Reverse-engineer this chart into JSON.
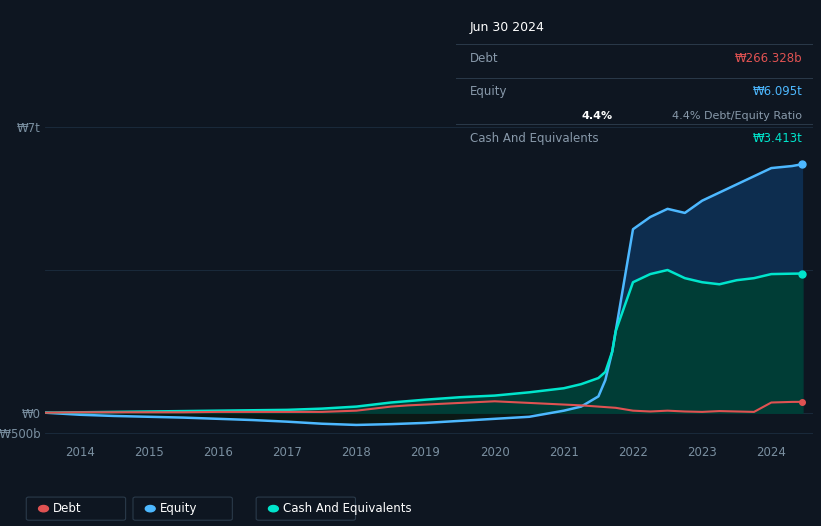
{
  "background_color": "#0e1621",
  "plot_bg_color": "#0e1621",
  "grid_color": "#1c2d3f",
  "title_box": {
    "date": "Jun 30 2024",
    "debt_label": "Debt",
    "debt_value": "₩266.328b",
    "equity_label": "Equity",
    "equity_value": "₩6.095t",
    "ratio_text": "4.4%",
    "ratio_suffix": " Debt/Equity Ratio",
    "cash_label": "Cash And Equivalents",
    "cash_value": "₩3.413t",
    "debt_color": "#e05252",
    "equity_color": "#4db8ff",
    "cash_color": "#00e5cc",
    "box_bg": "#0a0f1a",
    "box_border": "#2a3a4a"
  },
  "equity_data": {
    "x": [
      2013.5,
      2014.0,
      2014.5,
      2015.0,
      2015.5,
      2016.0,
      2016.5,
      2017.0,
      2017.5,
      2018.0,
      2018.5,
      2019.0,
      2019.5,
      2020.0,
      2020.5,
      2021.0,
      2021.25,
      2021.5,
      2021.6,
      2021.7,
      2021.75,
      2022.0,
      2022.25,
      2022.5,
      2022.75,
      2023.0,
      2023.25,
      2023.5,
      2023.75,
      2024.0,
      2024.3,
      2024.45
    ],
    "y": [
      0.0,
      -0.05,
      -0.08,
      -0.1,
      -0.12,
      -0.15,
      -0.18,
      -0.22,
      -0.27,
      -0.3,
      -0.28,
      -0.25,
      -0.2,
      -0.15,
      -0.1,
      0.05,
      0.15,
      0.4,
      0.8,
      1.5,
      2.0,
      4.5,
      4.8,
      5.0,
      4.9,
      5.2,
      5.4,
      5.6,
      5.8,
      6.0,
      6.05,
      6.095
    ],
    "color": "#4db8ff",
    "fill_color": "#0d2d4f",
    "linewidth": 1.8
  },
  "cash_data": {
    "x": [
      2013.5,
      2014.0,
      2014.5,
      2015.0,
      2015.5,
      2016.0,
      2016.5,
      2017.0,
      2017.5,
      2018.0,
      2018.25,
      2018.5,
      2019.0,
      2019.5,
      2020.0,
      2020.5,
      2021.0,
      2021.25,
      2021.5,
      2021.6,
      2021.7,
      2021.75,
      2022.0,
      2022.25,
      2022.5,
      2022.75,
      2023.0,
      2023.25,
      2023.5,
      2023.75,
      2024.0,
      2024.3,
      2024.45
    ],
    "y": [
      0.0,
      0.01,
      0.02,
      0.03,
      0.04,
      0.05,
      0.06,
      0.07,
      0.1,
      0.15,
      0.2,
      0.25,
      0.32,
      0.38,
      0.42,
      0.5,
      0.6,
      0.7,
      0.85,
      1.0,
      1.5,
      2.0,
      3.2,
      3.4,
      3.5,
      3.3,
      3.2,
      3.15,
      3.25,
      3.3,
      3.4,
      3.41,
      3.413
    ],
    "color": "#00e5cc",
    "fill_color": "#003d36",
    "linewidth": 1.8
  },
  "debt_data": {
    "x": [
      2013.5,
      2014.0,
      2014.5,
      2015.0,
      2015.5,
      2016.0,
      2016.5,
      2017.0,
      2017.5,
      2018.0,
      2018.25,
      2018.5,
      2018.75,
      2019.0,
      2019.25,
      2019.5,
      2019.75,
      2020.0,
      2020.25,
      2020.5,
      2020.75,
      2021.0,
      2021.25,
      2021.5,
      2021.75,
      2022.0,
      2022.25,
      2022.5,
      2022.75,
      2023.0,
      2023.25,
      2023.5,
      2023.75,
      2024.0,
      2024.3,
      2024.45
    ],
    "y": [
      0.0,
      0.01,
      0.01,
      0.01,
      0.01,
      0.02,
      0.02,
      0.02,
      0.02,
      0.05,
      0.1,
      0.15,
      0.18,
      0.2,
      0.22,
      0.24,
      0.26,
      0.28,
      0.26,
      0.24,
      0.22,
      0.2,
      0.18,
      0.15,
      0.12,
      0.05,
      0.03,
      0.05,
      0.03,
      0.02,
      0.04,
      0.03,
      0.02,
      0.25,
      0.265,
      0.266
    ],
    "color": "#e05252",
    "linewidth": 1.5
  },
  "y_ticks": [
    -0.5,
    0.0,
    7.0
  ],
  "y_tick_labels": [
    "-₩500b",
    "₩0",
    "₩7t"
  ],
  "x_tick_positions": [
    2014,
    2015,
    2016,
    2017,
    2018,
    2019,
    2020,
    2021,
    2022,
    2023,
    2024
  ],
  "x_tick_labels": [
    "2014",
    "2015",
    "2016",
    "2017",
    "2018",
    "2019",
    "2020",
    "2021",
    "2022",
    "2023",
    "2024"
  ],
  "ylim": [
    -0.65,
    7.8
  ],
  "xlim": [
    2013.5,
    2024.6
  ],
  "legend": [
    {
      "label": "Debt",
      "color": "#e05252"
    },
    {
      "label": "Equity",
      "color": "#4db8ff"
    },
    {
      "label": "Cash And Equivalents",
      "color": "#00e5cc"
    }
  ]
}
